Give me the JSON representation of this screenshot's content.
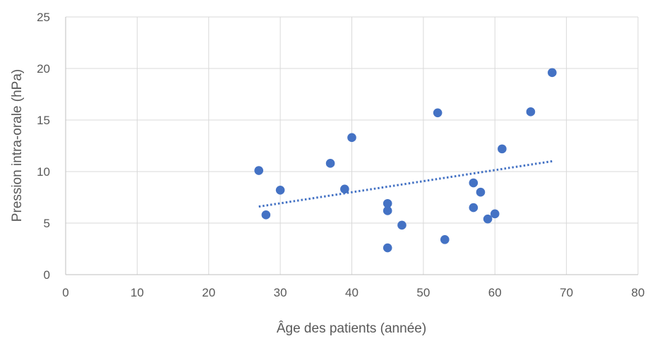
{
  "chart_data": {
    "type": "scatter",
    "title": "",
    "xlabel": "Âge des patients (année)",
    "ylabel": "Pression intra-orale (hPa)",
    "xlim": [
      0,
      80
    ],
    "ylim": [
      0,
      25
    ],
    "xticks": [
      0,
      10,
      20,
      30,
      40,
      50,
      60,
      70,
      80
    ],
    "yticks": [
      0,
      5,
      10,
      15,
      20,
      25
    ],
    "xtick_labels": [
      "0",
      "10",
      "20",
      "30",
      "40",
      "50",
      "60",
      "70",
      "80"
    ],
    "ytick_labels": [
      "0",
      "5",
      "10",
      "15",
      "20",
      "25"
    ],
    "grid": true,
    "legend": "none",
    "series": [
      {
        "marker_color": "#4472c4",
        "points": [
          {
            "x": 27,
            "y": 10.1
          },
          {
            "x": 28,
            "y": 5.8
          },
          {
            "x": 30,
            "y": 8.2
          },
          {
            "x": 37,
            "y": 10.8
          },
          {
            "x": 39,
            "y": 8.3
          },
          {
            "x": 40,
            "y": 13.3
          },
          {
            "x": 45,
            "y": 6.9
          },
          {
            "x": 45,
            "y": 6.2
          },
          {
            "x": 45,
            "y": 2.6
          },
          {
            "x": 47,
            "y": 4.8
          },
          {
            "x": 52,
            "y": 15.7
          },
          {
            "x": 53,
            "y": 3.4
          },
          {
            "x": 57,
            "y": 8.9
          },
          {
            "x": 57,
            "y": 6.5
          },
          {
            "x": 58,
            "y": 8.0
          },
          {
            "x": 59,
            "y": 5.4
          },
          {
            "x": 60,
            "y": 5.9
          },
          {
            "x": 61,
            "y": 12.2
          },
          {
            "x": 65,
            "y": 15.8
          },
          {
            "x": 68,
            "y": 19.6
          }
        ]
      }
    ],
    "trendline": {
      "type": "linear",
      "style": "dotted",
      "color": "#4472c4",
      "x_range": [
        27,
        68
      ],
      "y_values": [
        6.6,
        11.0
      ]
    }
  }
}
